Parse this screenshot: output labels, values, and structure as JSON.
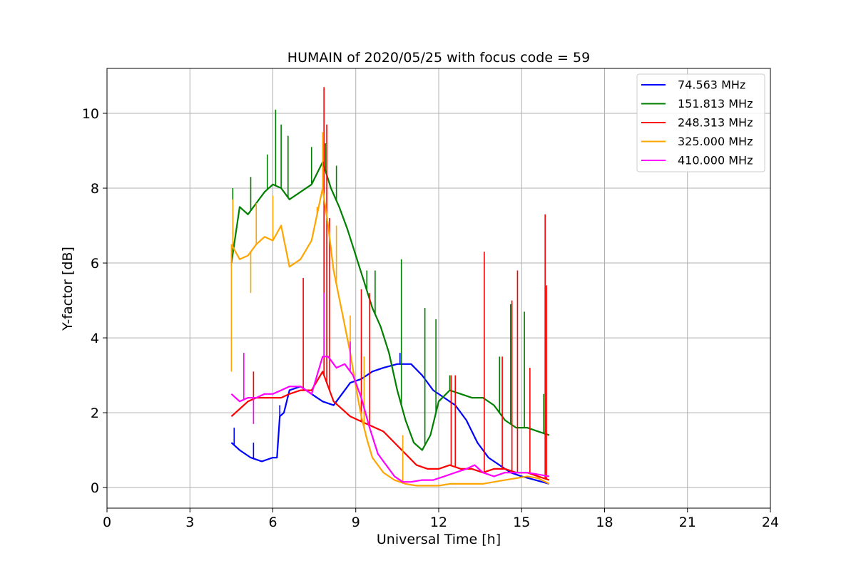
{
  "chart_data": {
    "type": "line",
    "title": "HUMAIN of 2020/05/25 with focus code = 59",
    "xlabel": "Universal Time [h]",
    "ylabel": "Y-factor [dB]",
    "xlim": [
      0,
      24
    ],
    "ylim": [
      -0.55,
      11.2
    ],
    "xticks": [
      0,
      3,
      6,
      9,
      12,
      15,
      18,
      21,
      24
    ],
    "yticks": [
      0,
      2,
      4,
      6,
      8,
      10
    ],
    "grid": true,
    "legend_position": "top-right",
    "series": [
      {
        "name": " 74.563 MHz",
        "color": "#0000ff",
        "x": [
          4.5,
          4.8,
          5.2,
          5.6,
          6.0,
          6.15,
          6.25,
          6.4,
          6.6,
          7.0,
          7.4,
          7.8,
          8.2,
          8.5,
          8.8,
          9.2,
          9.6,
          10.0,
          10.5,
          11.0,
          11.4,
          11.8,
          12.2,
          12.6,
          13.0,
          13.4,
          13.8,
          14.2,
          14.6,
          15.0,
          15.5,
          16.0
        ],
        "y": [
          1.2,
          1.0,
          0.8,
          0.7,
          0.8,
          0.8,
          1.9,
          2.0,
          2.6,
          2.7,
          2.5,
          2.3,
          2.2,
          2.5,
          2.8,
          2.9,
          3.1,
          3.2,
          3.3,
          3.3,
          3.0,
          2.6,
          2.4,
          2.2,
          1.8,
          1.2,
          0.8,
          0.6,
          0.4,
          0.3,
          0.2,
          0.1
        ],
        "spikes": [
          [
            4.6,
            1.6
          ],
          [
            5.3,
            1.2
          ],
          [
            6.25,
            2.2
          ],
          [
            10.6,
            3.6
          ]
        ]
      },
      {
        "name": "151.813 MHz",
        "color": "#008000",
        "x": [
          4.5,
          4.8,
          5.1,
          5.4,
          5.7,
          6.0,
          6.3,
          6.6,
          7.0,
          7.4,
          7.8,
          8.1,
          8.4,
          8.7,
          9.0,
          9.3,
          9.6,
          9.9,
          10.2,
          10.5,
          10.8,
          11.1,
          11.4,
          11.7,
          12.0,
          12.4,
          12.8,
          13.2,
          13.6,
          14.0,
          14.4,
          14.8,
          15.2,
          15.6,
          16.0
        ],
        "y": [
          6.0,
          7.5,
          7.3,
          7.6,
          7.9,
          8.1,
          8.0,
          7.7,
          7.9,
          8.1,
          8.7,
          8.0,
          7.5,
          6.9,
          6.2,
          5.5,
          4.8,
          4.3,
          3.6,
          2.6,
          1.8,
          1.2,
          1.0,
          1.4,
          2.3,
          2.6,
          2.5,
          2.4,
          2.4,
          2.2,
          1.8,
          1.6,
          1.6,
          1.5,
          1.4
        ],
        "spikes": [
          [
            4.55,
            8.0
          ],
          [
            5.2,
            8.3
          ],
          [
            5.8,
            8.9
          ],
          [
            6.1,
            10.1
          ],
          [
            6.3,
            9.7
          ],
          [
            6.55,
            9.4
          ],
          [
            7.4,
            9.1
          ],
          [
            7.9,
            9.2
          ],
          [
            8.3,
            8.6
          ],
          [
            9.4,
            5.8
          ],
          [
            9.7,
            5.8
          ],
          [
            10.65,
            6.1
          ],
          [
            11.5,
            4.8
          ],
          [
            11.9,
            4.5
          ],
          [
            12.4,
            3.0
          ],
          [
            14.2,
            3.5
          ],
          [
            14.6,
            4.9
          ],
          [
            15.1,
            4.7
          ],
          [
            15.8,
            2.5
          ]
        ]
      },
      {
        "name": "248.313 MHz",
        "color": "#ff0000",
        "x": [
          4.5,
          4.8,
          5.1,
          5.4,
          5.7,
          6.0,
          6.3,
          6.6,
          7.0,
          7.4,
          7.8,
          8.0,
          8.2,
          8.5,
          8.8,
          9.1,
          9.4,
          9.7,
          10.0,
          10.4,
          10.8,
          11.2,
          11.6,
          12.0,
          12.4,
          12.8,
          13.2,
          13.6,
          14.0,
          14.4,
          14.8,
          15.2,
          15.6,
          16.0
        ],
        "y": [
          1.9,
          2.1,
          2.3,
          2.4,
          2.4,
          2.4,
          2.4,
          2.5,
          2.6,
          2.6,
          3.1,
          2.7,
          2.3,
          2.1,
          1.9,
          1.8,
          1.7,
          1.6,
          1.5,
          1.2,
          0.9,
          0.6,
          0.5,
          0.5,
          0.6,
          0.5,
          0.5,
          0.4,
          0.5,
          0.5,
          0.4,
          0.4,
          0.3,
          0.2
        ],
        "spikes": [
          [
            5.3,
            3.1
          ],
          [
            7.1,
            5.6
          ],
          [
            7.85,
            10.7
          ],
          [
            7.95,
            9.7
          ],
          [
            8.05,
            7.2
          ],
          [
            9.2,
            5.3
          ],
          [
            9.5,
            5.2
          ],
          [
            12.45,
            3.0
          ],
          [
            12.6,
            3.0
          ],
          [
            13.65,
            6.3
          ],
          [
            14.3,
            3.5
          ],
          [
            14.65,
            5.0
          ],
          [
            14.85,
            5.8
          ],
          [
            15.3,
            3.2
          ],
          [
            15.85,
            7.3
          ],
          [
            15.9,
            5.4
          ]
        ]
      },
      {
        "name": "325.000 MHz",
        "color": "#ffa500",
        "x": [
          4.5,
          4.8,
          5.1,
          5.4,
          5.7,
          6.0,
          6.3,
          6.6,
          7.0,
          7.4,
          7.8,
          8.0,
          8.2,
          8.5,
          8.8,
          9.0,
          9.2,
          9.4,
          9.6,
          9.8,
          10.0,
          10.4,
          10.8,
          11.2,
          11.6,
          12.0,
          12.4,
          12.8,
          13.2,
          13.6,
          14.0,
          14.4,
          14.8,
          15.2,
          15.6,
          16.0
        ],
        "y": [
          6.5,
          6.1,
          6.2,
          6.5,
          6.7,
          6.6,
          7.0,
          5.9,
          6.1,
          6.6,
          8.0,
          7.0,
          5.8,
          4.7,
          3.6,
          2.7,
          1.9,
          1.3,
          0.8,
          0.6,
          0.4,
          0.2,
          0.1,
          0.05,
          0.05,
          0.05,
          0.1,
          0.1,
          0.1,
          0.1,
          0.15,
          0.2,
          0.25,
          0.3,
          0.25,
          0.1
        ],
        "spikes": [
          [
            4.5,
            3.1
          ],
          [
            4.55,
            7.7
          ],
          [
            5.2,
            5.2
          ],
          [
            5.4,
            7.6
          ],
          [
            6.0,
            7.8
          ],
          [
            7.6,
            7.5
          ],
          [
            7.8,
            9.5
          ],
          [
            8.3,
            7.0
          ],
          [
            8.8,
            4.6
          ],
          [
            9.3,
            3.5
          ],
          [
            10.7,
            1.4
          ]
        ]
      },
      {
        "name": "410.000 MHz",
        "color": "#ff00ff",
        "x": [
          4.5,
          4.8,
          5.1,
          5.4,
          5.7,
          6.0,
          6.3,
          6.6,
          7.0,
          7.4,
          7.6,
          7.8,
          8.0,
          8.3,
          8.6,
          8.9,
          9.2,
          9.5,
          9.8,
          10.1,
          10.4,
          10.7,
          11.0,
          11.4,
          11.8,
          12.2,
          12.6,
          13.0,
          13.3,
          13.6,
          14.0,
          14.4,
          14.8,
          15.2,
          15.6,
          16.0
        ],
        "y": [
          2.5,
          2.3,
          2.4,
          2.4,
          2.5,
          2.5,
          2.6,
          2.7,
          2.7,
          2.5,
          3.0,
          3.5,
          3.5,
          3.2,
          3.3,
          3.0,
          2.4,
          1.6,
          0.9,
          0.6,
          0.3,
          0.15,
          0.15,
          0.2,
          0.2,
          0.3,
          0.4,
          0.5,
          0.6,
          0.4,
          0.3,
          0.4,
          0.4,
          0.4,
          0.35,
          0.3
        ],
        "spikes": [
          [
            4.95,
            3.6
          ],
          [
            5.3,
            1.7
          ],
          [
            7.85,
            5.2
          ],
          [
            8.8,
            3.9
          ]
        ]
      }
    ]
  }
}
